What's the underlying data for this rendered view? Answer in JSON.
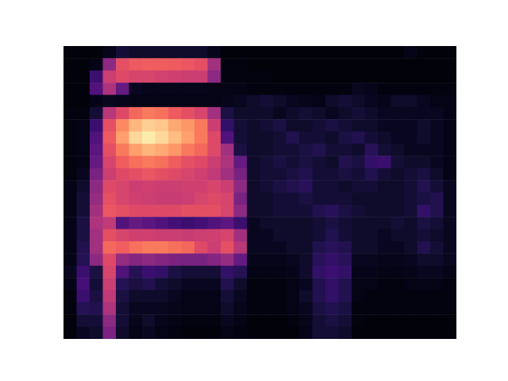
{
  "chart_data": {
    "type": "heatmap",
    "tick_labels": false,
    "color": "magma",
    "zlim": [
      0,
      100
    ],
    "cells": [
      [
        2,
        2,
        2,
        5,
        10,
        8,
        8,
        8,
        8,
        8,
        8,
        5,
        2,
        2,
        2,
        2,
        2,
        2,
        2,
        2,
        2,
        2,
        2,
        2,
        2,
        2,
        4,
        2,
        2,
        2
      ],
      [
        2,
        2,
        4,
        40,
        62,
        65,
        66,
        66,
        65,
        64,
        62,
        45,
        3,
        3,
        2,
        2,
        2,
        2,
        2,
        2,
        2,
        2,
        2,
        2,
        2,
        2,
        2,
        2,
        2,
        2
      ],
      [
        2,
        2,
        20,
        55,
        60,
        58,
        58,
        57,
        56,
        55,
        55,
        40,
        3,
        3,
        3,
        3,
        2,
        2,
        2,
        2,
        2,
        2,
        2,
        2,
        2,
        2,
        2,
        2,
        2,
        2
      ],
      [
        2,
        2,
        25,
        48,
        30,
        6,
        5,
        5,
        5,
        5,
        5,
        4,
        4,
        4,
        3,
        3,
        3,
        3,
        3,
        3,
        3,
        3,
        6,
        5,
        3,
        3,
        3,
        3,
        3,
        3
      ],
      [
        2,
        2,
        4,
        6,
        5,
        4,
        4,
        4,
        4,
        4,
        4,
        4,
        5,
        6,
        8,
        10,
        8,
        6,
        5,
        4,
        8,
        10,
        8,
        6,
        5,
        8,
        8,
        6,
        4,
        4
      ],
      [
        3,
        3,
        10,
        50,
        60,
        68,
        72,
        70,
        65,
        62,
        58,
        45,
        12,
        8,
        8,
        8,
        6,
        8,
        10,
        8,
        6,
        8,
        10,
        8,
        6,
        6,
        6,
        6,
        6,
        4
      ],
      [
        3,
        4,
        20,
        62,
        75,
        85,
        90,
        88,
        82,
        78,
        72,
        55,
        18,
        10,
        8,
        10,
        12,
        8,
        8,
        10,
        12,
        10,
        8,
        8,
        6,
        6,
        6,
        8,
        6,
        4
      ],
      [
        3,
        4,
        25,
        65,
        80,
        92,
        96,
        92,
        86,
        80,
        72,
        60,
        25,
        10,
        8,
        8,
        10,
        14,
        10,
        10,
        8,
        12,
        14,
        10,
        8,
        6,
        6,
        8,
        6,
        4
      ],
      [
        3,
        4,
        28,
        62,
        72,
        80,
        84,
        82,
        78,
        72,
        68,
        60,
        45,
        12,
        8,
        8,
        10,
        10,
        12,
        14,
        10,
        10,
        8,
        16,
        10,
        8,
        6,
        6,
        6,
        4
      ],
      [
        3,
        4,
        30,
        58,
        66,
        70,
        72,
        70,
        66,
        62,
        60,
        55,
        48,
        30,
        8,
        10,
        12,
        10,
        12,
        10,
        8,
        14,
        12,
        18,
        20,
        10,
        8,
        8,
        6,
        4
      ],
      [
        3,
        6,
        35,
        55,
        60,
        62,
        64,
        62,
        60,
        58,
        56,
        52,
        45,
        35,
        8,
        10,
        10,
        12,
        14,
        10,
        10,
        12,
        10,
        14,
        10,
        8,
        10,
        12,
        8,
        4
      ],
      [
        4,
        8,
        40,
        60,
        58,
        55,
        56,
        55,
        55,
        56,
        56,
        58,
        55,
        40,
        8,
        10,
        12,
        14,
        16,
        10,
        10,
        8,
        10,
        10,
        8,
        8,
        10,
        14,
        10,
        6
      ],
      [
        4,
        10,
        42,
        62,
        58,
        56,
        55,
        54,
        54,
        55,
        58,
        60,
        58,
        35,
        8,
        8,
        10,
        10,
        12,
        10,
        10,
        10,
        8,
        8,
        8,
        8,
        10,
        12,
        14,
        6
      ],
      [
        4,
        10,
        45,
        64,
        62,
        60,
        60,
        60,
        60,
        62,
        62,
        62,
        58,
        40,
        8,
        8,
        10,
        10,
        10,
        14,
        16,
        12,
        10,
        8,
        8,
        8,
        10,
        18,
        14,
        6
      ],
      [
        4,
        12,
        48,
        52,
        25,
        30,
        28,
        25,
        22,
        20,
        22,
        25,
        28,
        20,
        6,
        8,
        8,
        8,
        8,
        10,
        12,
        10,
        8,
        8,
        8,
        10,
        8,
        12,
        10,
        6
      ],
      [
        4,
        12,
        45,
        62,
        58,
        56,
        56,
        55,
        55,
        54,
        55,
        56,
        58,
        45,
        6,
        6,
        8,
        8,
        8,
        10,
        14,
        10,
        8,
        8,
        6,
        8,
        8,
        10,
        8,
        6
      ],
      [
        4,
        14,
        45,
        68,
        66,
        70,
        72,
        72,
        70,
        68,
        60,
        55,
        62,
        50,
        6,
        6,
        6,
        8,
        8,
        14,
        16,
        14,
        8,
        8,
        6,
        6,
        8,
        14,
        10,
        6
      ],
      [
        4,
        15,
        40,
        60,
        42,
        38,
        40,
        38,
        36,
        35,
        35,
        38,
        42,
        30,
        5,
        5,
        5,
        6,
        8,
        16,
        18,
        16,
        6,
        6,
        5,
        5,
        6,
        8,
        8,
        6
      ],
      [
        6,
        20,
        12,
        58,
        25,
        15,
        20,
        18,
        12,
        10,
        10,
        10,
        18,
        15,
        4,
        4,
        4,
        5,
        8,
        18,
        20,
        18,
        5,
        5,
        4,
        4,
        5,
        6,
        6,
        4
      ],
      [
        4,
        22,
        10,
        55,
        15,
        12,
        14,
        10,
        8,
        6,
        6,
        6,
        14,
        8,
        3,
        3,
        3,
        4,
        6,
        14,
        18,
        14,
        4,
        4,
        3,
        3,
        4,
        4,
        4,
        3
      ],
      [
        3,
        20,
        12,
        52,
        12,
        8,
        8,
        8,
        6,
        4,
        4,
        4,
        10,
        6,
        3,
        3,
        3,
        4,
        8,
        14,
        18,
        14,
        4,
        3,
        3,
        3,
        3,
        3,
        3,
        3
      ],
      [
        3,
        15,
        14,
        48,
        10,
        6,
        6,
        6,
        5,
        4,
        4,
        4,
        8,
        5,
        3,
        3,
        3,
        4,
        6,
        12,
        14,
        12,
        3,
        3,
        3,
        3,
        3,
        3,
        3,
        3
      ],
      [
        2,
        10,
        10,
        40,
        10,
        5,
        8,
        5,
        4,
        3,
        3,
        3,
        6,
        4,
        2,
        2,
        2,
        3,
        5,
        10,
        12,
        10,
        3,
        2,
        2,
        2,
        2,
        2,
        2,
        2
      ],
      [
        2,
        6,
        8,
        36,
        8,
        4,
        6,
        4,
        3,
        2,
        2,
        2,
        4,
        3,
        2,
        2,
        2,
        2,
        4,
        10,
        10,
        8,
        2,
        2,
        2,
        2,
        2,
        2,
        2,
        2
      ]
    ]
  }
}
